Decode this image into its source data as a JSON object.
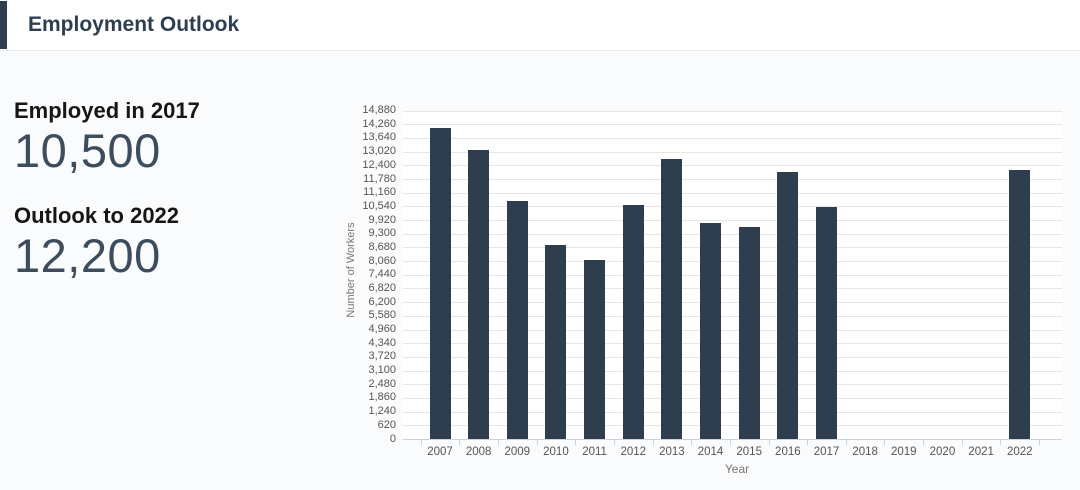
{
  "header": {
    "title": "Employment Outlook"
  },
  "stats": [
    {
      "label": "Employed in 2017",
      "value": "10,500"
    },
    {
      "label": "Outlook to 2022",
      "value": "12,200"
    }
  ],
  "chart": {
    "menu_icon": "hamburger-menu-icon"
  },
  "theme": {
    "accent_color": "#2e3d4f",
    "bar_color": "#2e3e4f",
    "stat_value_color": "#3e4d5c",
    "grid_color": "#e6e6e6",
    "axis_color": "#cdd3da",
    "tick_label_color": "#555555",
    "axis_title_color": "#777777"
  },
  "chart_data": {
    "type": "bar",
    "title": "",
    "xlabel": "Year",
    "ylabel": "Number of Workers",
    "categories": [
      "2007",
      "2008",
      "2009",
      "2010",
      "2011",
      "2012",
      "2013",
      "2014",
      "2015",
      "2016",
      "2017",
      "2018",
      "2019",
      "2020",
      "2021",
      "2022"
    ],
    "values": [
      14100,
      13100,
      10800,
      8800,
      8100,
      10600,
      12700,
      9800,
      9600,
      12100,
      10500,
      null,
      null,
      null,
      null,
      12200
    ],
    "ylim": [
      0,
      14880
    ],
    "ytick_step": 620,
    "grid": true,
    "legend": false
  }
}
